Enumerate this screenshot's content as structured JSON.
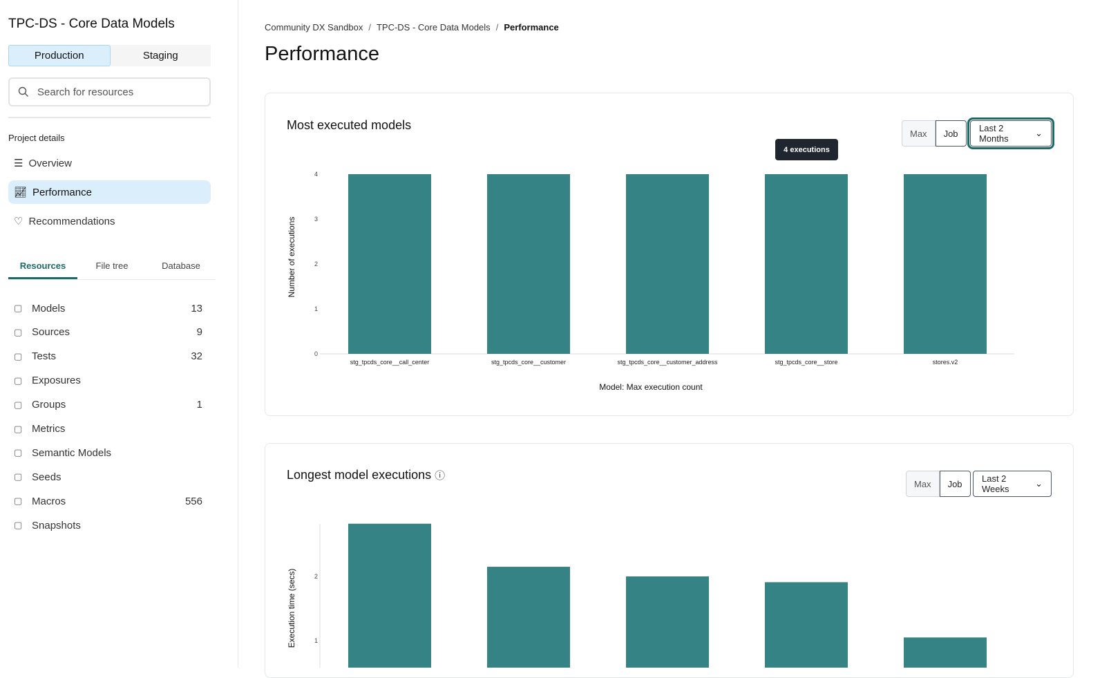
{
  "sidebar": {
    "project_title": "TPC-DS - Core Data Models",
    "environments": [
      {
        "label": "Production",
        "active": true
      },
      {
        "label": "Staging",
        "active": false
      }
    ],
    "search_placeholder": "Search for resources",
    "section_label": "Project details",
    "nav": [
      {
        "label": "Overview",
        "icon": "list-icon"
      },
      {
        "label": "Performance",
        "icon": "line-chart-icon",
        "active": true
      },
      {
        "label": "Recommendations",
        "icon": "lightbulb-icon"
      }
    ],
    "tabs": [
      {
        "label": "Resources",
        "active": true
      },
      {
        "label": "File tree"
      },
      {
        "label": "Database"
      }
    ],
    "resources": [
      {
        "label": "Models",
        "count": "13",
        "icon": "cube-icon"
      },
      {
        "label": "Sources",
        "count": "9",
        "icon": "database-icon"
      },
      {
        "label": "Tests",
        "count": "32",
        "icon": "clipboard-icon"
      },
      {
        "label": "Exposures",
        "count": "",
        "icon": "gauge-icon"
      },
      {
        "label": "Groups",
        "count": "1",
        "icon": "grid-icon"
      },
      {
        "label": "Metrics",
        "count": "",
        "icon": "bar-chart-icon"
      },
      {
        "label": "Semantic Models",
        "count": "",
        "icon": "graph-icon"
      },
      {
        "label": "Seeds",
        "count": "",
        "icon": "seedling-icon"
      },
      {
        "label": "Macros",
        "count": "556",
        "icon": "file-icon"
      },
      {
        "label": "Snapshots",
        "count": "",
        "icon": "camera-icon"
      }
    ]
  },
  "breadcrumb": [
    "Community DX Sandbox",
    "TPC-DS - Core Data Models",
    "Performance"
  ],
  "page_title": "Performance",
  "cards": [
    {
      "title": "Most executed models",
      "toggle": [
        "Max",
        "Job"
      ],
      "range": "Last 2 Months",
      "tooltip": "4 executions"
    },
    {
      "title": "Longest model executions",
      "toggle": [
        "Max",
        "Job"
      ],
      "range": "Last 2 Weeks"
    }
  ],
  "colors": {
    "bar": "#358385",
    "accent": "#1b6a68",
    "active_bg": "#dbeefc"
  },
  "chart_data": [
    {
      "type": "bar",
      "categories": [
        "stg_tpcds_core__call_center",
        "stg_tpcds_core__customer",
        "stg_tpcds_core__customer_address",
        "stg_tpcds_core__store",
        "stores.v2"
      ],
      "values": [
        4,
        4,
        4,
        4,
        4
      ],
      "xlabel": "Model: Max execution count",
      "ylabel": "Number of executions",
      "ylim": [
        0,
        4
      ],
      "yticks": [
        "0",
        "1",
        "2",
        "3",
        "4"
      ],
      "grid": false
    },
    {
      "type": "bar",
      "values": [
        2.82,
        2.15,
        2.0,
        1.91,
        1.05
      ],
      "ylabel": "Execution time (secs)",
      "yticks": [
        "1",
        "2"
      ],
      "grid": false
    }
  ]
}
